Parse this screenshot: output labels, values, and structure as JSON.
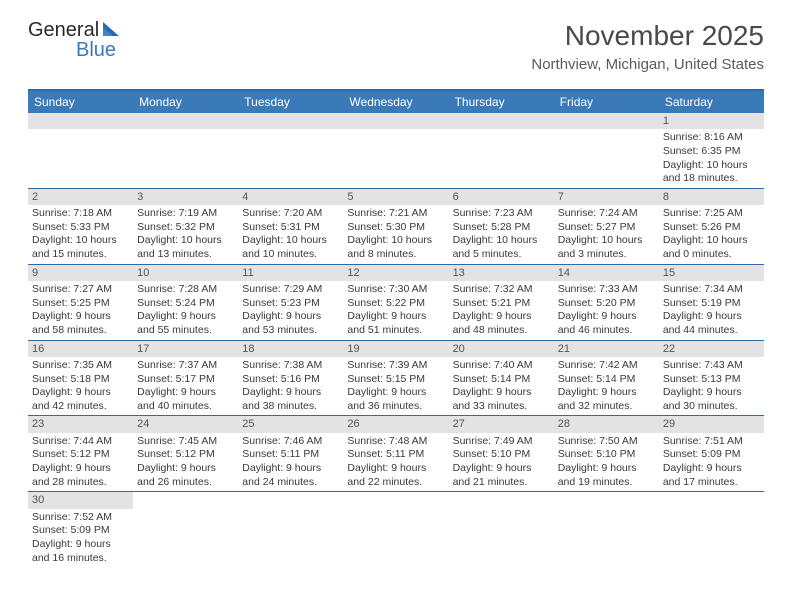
{
  "logo": {
    "part1": "General",
    "part2": "Blue"
  },
  "title": "November 2025",
  "location": "Northview, Michigan, United States",
  "colors": {
    "header_bg": "#3a7ab8",
    "header_text": "#ffffff",
    "border": "#2a6bb0",
    "daynum_bg": "#e3e3e3",
    "daynum_text": "#555555",
    "body_text": "#3a3a3a"
  },
  "weekdays": [
    "Sunday",
    "Monday",
    "Tuesday",
    "Wednesday",
    "Thursday",
    "Friday",
    "Saturday"
  ],
  "weeks": [
    [
      {
        "n": "",
        "sr": "",
        "ss": "",
        "dl1": "",
        "dl2": ""
      },
      {
        "n": "",
        "sr": "",
        "ss": "",
        "dl1": "",
        "dl2": ""
      },
      {
        "n": "",
        "sr": "",
        "ss": "",
        "dl1": "",
        "dl2": ""
      },
      {
        "n": "",
        "sr": "",
        "ss": "",
        "dl1": "",
        "dl2": ""
      },
      {
        "n": "",
        "sr": "",
        "ss": "",
        "dl1": "",
        "dl2": ""
      },
      {
        "n": "",
        "sr": "",
        "ss": "",
        "dl1": "",
        "dl2": ""
      },
      {
        "n": "1",
        "sr": "Sunrise: 8:16 AM",
        "ss": "Sunset: 6:35 PM",
        "dl1": "Daylight: 10 hours",
        "dl2": "and 18 minutes."
      }
    ],
    [
      {
        "n": "2",
        "sr": "Sunrise: 7:18 AM",
        "ss": "Sunset: 5:33 PM",
        "dl1": "Daylight: 10 hours",
        "dl2": "and 15 minutes."
      },
      {
        "n": "3",
        "sr": "Sunrise: 7:19 AM",
        "ss": "Sunset: 5:32 PM",
        "dl1": "Daylight: 10 hours",
        "dl2": "and 13 minutes."
      },
      {
        "n": "4",
        "sr": "Sunrise: 7:20 AM",
        "ss": "Sunset: 5:31 PM",
        "dl1": "Daylight: 10 hours",
        "dl2": "and 10 minutes."
      },
      {
        "n": "5",
        "sr": "Sunrise: 7:21 AM",
        "ss": "Sunset: 5:30 PM",
        "dl1": "Daylight: 10 hours",
        "dl2": "and 8 minutes."
      },
      {
        "n": "6",
        "sr": "Sunrise: 7:23 AM",
        "ss": "Sunset: 5:28 PM",
        "dl1": "Daylight: 10 hours",
        "dl2": "and 5 minutes."
      },
      {
        "n": "7",
        "sr": "Sunrise: 7:24 AM",
        "ss": "Sunset: 5:27 PM",
        "dl1": "Daylight: 10 hours",
        "dl2": "and 3 minutes."
      },
      {
        "n": "8",
        "sr": "Sunrise: 7:25 AM",
        "ss": "Sunset: 5:26 PM",
        "dl1": "Daylight: 10 hours",
        "dl2": "and 0 minutes."
      }
    ],
    [
      {
        "n": "9",
        "sr": "Sunrise: 7:27 AM",
        "ss": "Sunset: 5:25 PM",
        "dl1": "Daylight: 9 hours",
        "dl2": "and 58 minutes."
      },
      {
        "n": "10",
        "sr": "Sunrise: 7:28 AM",
        "ss": "Sunset: 5:24 PM",
        "dl1": "Daylight: 9 hours",
        "dl2": "and 55 minutes."
      },
      {
        "n": "11",
        "sr": "Sunrise: 7:29 AM",
        "ss": "Sunset: 5:23 PM",
        "dl1": "Daylight: 9 hours",
        "dl2": "and 53 minutes."
      },
      {
        "n": "12",
        "sr": "Sunrise: 7:30 AM",
        "ss": "Sunset: 5:22 PM",
        "dl1": "Daylight: 9 hours",
        "dl2": "and 51 minutes."
      },
      {
        "n": "13",
        "sr": "Sunrise: 7:32 AM",
        "ss": "Sunset: 5:21 PM",
        "dl1": "Daylight: 9 hours",
        "dl2": "and 48 minutes."
      },
      {
        "n": "14",
        "sr": "Sunrise: 7:33 AM",
        "ss": "Sunset: 5:20 PM",
        "dl1": "Daylight: 9 hours",
        "dl2": "and 46 minutes."
      },
      {
        "n": "15",
        "sr": "Sunrise: 7:34 AM",
        "ss": "Sunset: 5:19 PM",
        "dl1": "Daylight: 9 hours",
        "dl2": "and 44 minutes."
      }
    ],
    [
      {
        "n": "16",
        "sr": "Sunrise: 7:35 AM",
        "ss": "Sunset: 5:18 PM",
        "dl1": "Daylight: 9 hours",
        "dl2": "and 42 minutes."
      },
      {
        "n": "17",
        "sr": "Sunrise: 7:37 AM",
        "ss": "Sunset: 5:17 PM",
        "dl1": "Daylight: 9 hours",
        "dl2": "and 40 minutes."
      },
      {
        "n": "18",
        "sr": "Sunrise: 7:38 AM",
        "ss": "Sunset: 5:16 PM",
        "dl1": "Daylight: 9 hours",
        "dl2": "and 38 minutes."
      },
      {
        "n": "19",
        "sr": "Sunrise: 7:39 AM",
        "ss": "Sunset: 5:15 PM",
        "dl1": "Daylight: 9 hours",
        "dl2": "and 36 minutes."
      },
      {
        "n": "20",
        "sr": "Sunrise: 7:40 AM",
        "ss": "Sunset: 5:14 PM",
        "dl1": "Daylight: 9 hours",
        "dl2": "and 33 minutes."
      },
      {
        "n": "21",
        "sr": "Sunrise: 7:42 AM",
        "ss": "Sunset: 5:14 PM",
        "dl1": "Daylight: 9 hours",
        "dl2": "and 32 minutes."
      },
      {
        "n": "22",
        "sr": "Sunrise: 7:43 AM",
        "ss": "Sunset: 5:13 PM",
        "dl1": "Daylight: 9 hours",
        "dl2": "and 30 minutes."
      }
    ],
    [
      {
        "n": "23",
        "sr": "Sunrise: 7:44 AM",
        "ss": "Sunset: 5:12 PM",
        "dl1": "Daylight: 9 hours",
        "dl2": "and 28 minutes."
      },
      {
        "n": "24",
        "sr": "Sunrise: 7:45 AM",
        "ss": "Sunset: 5:12 PM",
        "dl1": "Daylight: 9 hours",
        "dl2": "and 26 minutes."
      },
      {
        "n": "25",
        "sr": "Sunrise: 7:46 AM",
        "ss": "Sunset: 5:11 PM",
        "dl1": "Daylight: 9 hours",
        "dl2": "and 24 minutes."
      },
      {
        "n": "26",
        "sr": "Sunrise: 7:48 AM",
        "ss": "Sunset: 5:11 PM",
        "dl1": "Daylight: 9 hours",
        "dl2": "and 22 minutes."
      },
      {
        "n": "27",
        "sr": "Sunrise: 7:49 AM",
        "ss": "Sunset: 5:10 PM",
        "dl1": "Daylight: 9 hours",
        "dl2": "and 21 minutes."
      },
      {
        "n": "28",
        "sr": "Sunrise: 7:50 AM",
        "ss": "Sunset: 5:10 PM",
        "dl1": "Daylight: 9 hours",
        "dl2": "and 19 minutes."
      },
      {
        "n": "29",
        "sr": "Sunrise: 7:51 AM",
        "ss": "Sunset: 5:09 PM",
        "dl1": "Daylight: 9 hours",
        "dl2": "and 17 minutes."
      }
    ],
    [
      {
        "n": "30",
        "sr": "Sunrise: 7:52 AM",
        "ss": "Sunset: 5:09 PM",
        "dl1": "Daylight: 9 hours",
        "dl2": "and 16 minutes."
      },
      {
        "n": "",
        "sr": "",
        "ss": "",
        "dl1": "",
        "dl2": ""
      },
      {
        "n": "",
        "sr": "",
        "ss": "",
        "dl1": "",
        "dl2": ""
      },
      {
        "n": "",
        "sr": "",
        "ss": "",
        "dl1": "",
        "dl2": ""
      },
      {
        "n": "",
        "sr": "",
        "ss": "",
        "dl1": "",
        "dl2": ""
      },
      {
        "n": "",
        "sr": "",
        "ss": "",
        "dl1": "",
        "dl2": ""
      },
      {
        "n": "",
        "sr": "",
        "ss": "",
        "dl1": "",
        "dl2": ""
      }
    ]
  ]
}
